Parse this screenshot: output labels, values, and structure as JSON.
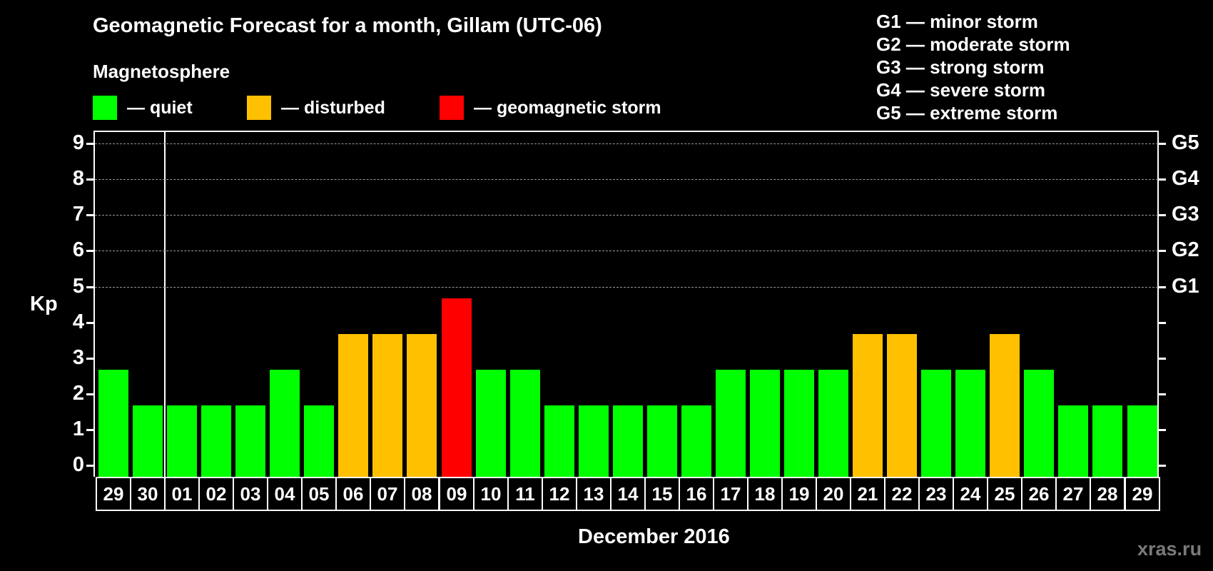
{
  "header": {
    "title": "Geomagnetic Forecast for a month, Gillam (UTC-06)",
    "subtitle": "Magnetosphere"
  },
  "legend": [
    {
      "label": "— quiet",
      "color": "#00ff00"
    },
    {
      "label": "— disturbed",
      "color": "#ffc000"
    },
    {
      "label": "— geomagnetic storm",
      "color": "#ff0000"
    }
  ],
  "storm_scale": [
    "G1 — minor storm",
    "G2 — moderate storm",
    "G3 — strong storm",
    "G4 — severe storm",
    "G5 — extreme storm"
  ],
  "axes": {
    "ylabel": "Kp",
    "xlabel": "December 2016",
    "yticks": [
      "0",
      "1",
      "2",
      "3",
      "4",
      "5",
      "6",
      "7",
      "8",
      "9"
    ],
    "right_labels": {
      "5": "G1",
      "6": "G2",
      "7": "G3",
      "8": "G4",
      "9": "G5"
    }
  },
  "watermark": "xras.ru",
  "colors": {
    "quiet": "#00ff00",
    "disturbed": "#ffc000",
    "storm": "#ff0000",
    "background": "#000000",
    "grid": "#9a9a9a"
  },
  "chart_data": {
    "type": "bar",
    "title": "Geomagnetic Forecast for a month, Gillam (UTC-06)",
    "xlabel": "December 2016",
    "ylabel": "Kp",
    "ylim": [
      0,
      9
    ],
    "grid": "dashed horizontal at Kp 5-9",
    "categories": [
      "29",
      "30",
      "01",
      "02",
      "03",
      "04",
      "05",
      "06",
      "07",
      "08",
      "09",
      "10",
      "11",
      "12",
      "13",
      "14",
      "15",
      "16",
      "17",
      "18",
      "19",
      "20",
      "21",
      "22",
      "23",
      "24",
      "25",
      "26",
      "27",
      "28",
      "29"
    ],
    "values": [
      3,
      2,
      2,
      2,
      2,
      3,
      2,
      4,
      4,
      4,
      5,
      3,
      3,
      2,
      2,
      2,
      2,
      2,
      3,
      3,
      3,
      3,
      4,
      4,
      3,
      3,
      4,
      3,
      2,
      2,
      2
    ],
    "status": [
      "quiet",
      "quiet",
      "quiet",
      "quiet",
      "quiet",
      "quiet",
      "quiet",
      "disturbed",
      "disturbed",
      "disturbed",
      "storm",
      "quiet",
      "quiet",
      "quiet",
      "quiet",
      "quiet",
      "quiet",
      "quiet",
      "quiet",
      "quiet",
      "quiet",
      "quiet",
      "disturbed",
      "disturbed",
      "quiet",
      "quiet",
      "disturbed",
      "quiet",
      "quiet",
      "quiet",
      "quiet"
    ],
    "legend": [
      "quiet",
      "disturbed",
      "geomagnetic storm"
    ],
    "right_axis": [
      "G1",
      "G2",
      "G3",
      "G4",
      "G5"
    ]
  }
}
